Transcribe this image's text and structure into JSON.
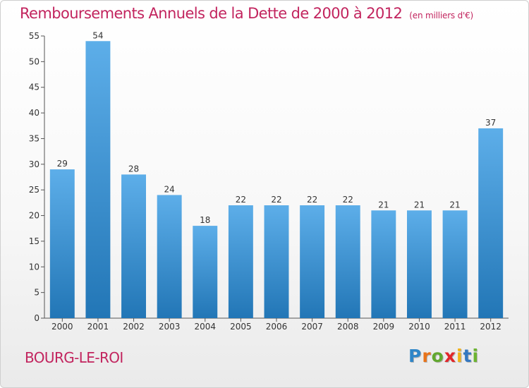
{
  "title": "Remboursements Annuels de la Dette de 2000 à 2012",
  "subtitle": "(en milliers d'€)",
  "place_label": "BOURG-LE-ROI",
  "logo": {
    "letters": [
      "P",
      "r",
      "o",
      "x",
      "i",
      "t",
      "i"
    ],
    "colors": [
      "#2f86c8",
      "#e8731a",
      "#62a82f",
      "#e2262a",
      "#f1b21b",
      "#3478c1",
      "#6cb431"
    ]
  },
  "colors": {
    "bar_top": "#5daee9",
    "bar_bottom": "#2276b6",
    "text": "#c2245e",
    "axis": "#555555"
  },
  "chart_data": {
    "type": "bar",
    "categories": [
      "2000",
      "2001",
      "2002",
      "2003",
      "2004",
      "2005",
      "2006",
      "2007",
      "2008",
      "2009",
      "2010",
      "2011",
      "2012"
    ],
    "values": [
      29,
      54,
      28,
      24,
      18,
      22,
      22,
      22,
      22,
      21,
      21,
      21,
      37
    ],
    "ylim": [
      0,
      55
    ],
    "yticks": [
      0,
      5,
      10,
      15,
      20,
      25,
      30,
      35,
      40,
      45,
      50,
      55
    ],
    "grid": false,
    "legend": "none"
  }
}
